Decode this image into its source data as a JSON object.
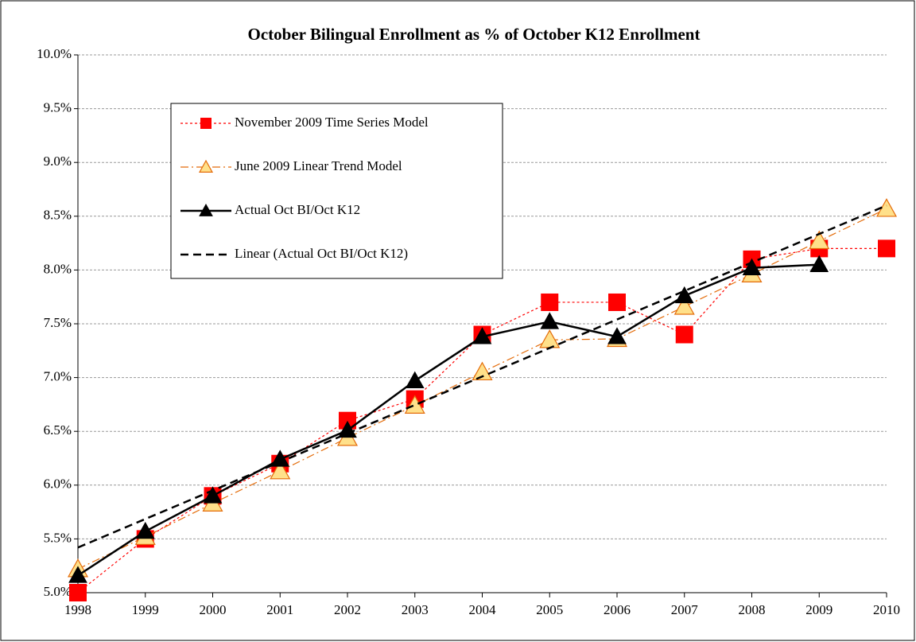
{
  "chart_data": {
    "type": "line",
    "title": "October Bilingual Enrollment as % of October K12 Enrollment",
    "categories": [
      "1998",
      "1999",
      "2000",
      "2001",
      "2002",
      "2003",
      "2004",
      "2005",
      "2006",
      "2007",
      "2008",
      "2009",
      "2010"
    ],
    "ylim": [
      5,
      10
    ],
    "yticks": [
      {
        "value": 5,
        "label": "5.0%"
      },
      {
        "value": 5.5,
        "label": "5.5%"
      },
      {
        "value": 6,
        "label": "6.0%"
      },
      {
        "value": 6.5,
        "label": "6.5%"
      },
      {
        "value": 7,
        "label": "7.0%"
      },
      {
        "value": 7.5,
        "label": "7.5%"
      },
      {
        "value": 8,
        "label": "8.0%"
      },
      {
        "value": 8.5,
        "label": "8.5%"
      },
      {
        "value": 9,
        "label": "9.0%"
      },
      {
        "value": 9.5,
        "label": "9.5%"
      },
      {
        "value": 10,
        "label": "10.0%"
      }
    ],
    "grid": true,
    "legend": "upper left",
    "series": [
      {
        "name": "November 2009 Time Series Model",
        "color": "#ff0000",
        "marker": "square",
        "dash": "dotted",
        "values": [
          5.0,
          5.5,
          5.9,
          6.2,
          6.6,
          6.8,
          7.4,
          7.7,
          7.7,
          7.4,
          8.1,
          8.2,
          8.2
        ]
      },
      {
        "name": "June 2009 Linear Trend Model",
        "color": "#e46c0a",
        "marker": "open-triangle",
        "dash": "dash-dot",
        "values": [
          5.22,
          5.52,
          5.83,
          6.13,
          6.44,
          6.74,
          7.05,
          7.35,
          7.36,
          7.66,
          7.96,
          8.27,
          8.57
        ]
      },
      {
        "name": "Actual Oct BI/Oct K12",
        "color": "#000000",
        "marker": "triangle",
        "dash": "solid",
        "values": [
          5.16,
          5.57,
          5.9,
          6.24,
          6.51,
          6.97,
          7.38,
          7.52,
          7.38,
          7.76,
          8.02,
          8.05,
          null
        ]
      },
      {
        "name": "Linear (Actual Oct BI/Oct K12)",
        "color": "#000000",
        "marker": "none",
        "dash": "dashed",
        "values": [
          5.42,
          5.685,
          5.95,
          6.215,
          6.48,
          6.745,
          7.01,
          7.275,
          7.54,
          7.805,
          8.07,
          8.335,
          8.6
        ]
      }
    ]
  }
}
